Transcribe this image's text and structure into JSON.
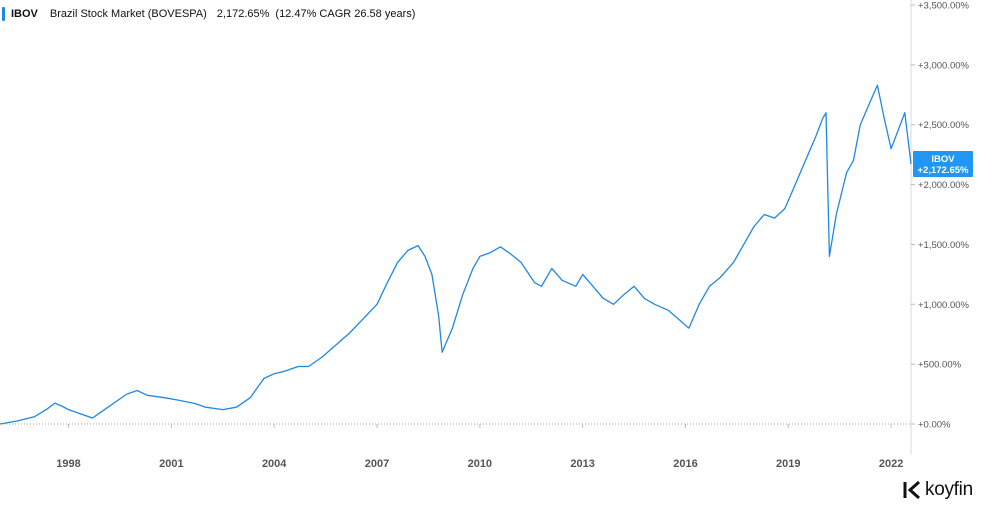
{
  "legend": {
    "ticker": "IBOV",
    "series_name": "Brazil Stock Market (BOVESPA)",
    "return_pct": "2,172.65%",
    "cagr_note": "(12.47% CAGR 26.58 years)"
  },
  "brand": {
    "name": "koyfin",
    "icon": "koyfin-logo-icon"
  },
  "colors": {
    "line": "#1e88e5",
    "badge": "#2196f3",
    "axis": "#d9d9d9",
    "zero_line": "#9e9e9e",
    "tick_text": "#555555"
  },
  "end_badge": {
    "ticker": "IBOV",
    "value": "+2,172.65%"
  },
  "chart_data": {
    "type": "line",
    "title": "",
    "xlabel": "",
    "ylabel": "",
    "x_tick_labels": [
      "1998",
      "2001",
      "2004",
      "2007",
      "2010",
      "2013",
      "2016",
      "2019",
      "2022"
    ],
    "x_tick_years": [
      1998,
      2001,
      2004,
      2007,
      2010,
      2013,
      2016,
      2019,
      2022
    ],
    "y_tick_labels": [
      "+0.00%",
      "+500.00%",
      "+1,000.00%",
      "+1,500.00%",
      "+2,000.00%",
      "+2,500.00%",
      "+3,000.00%",
      "+3,500.00%"
    ],
    "y_tick_values": [
      0,
      500,
      1000,
      1500,
      2000,
      2500,
      3000,
      3500
    ],
    "xlim": [
      1996.0,
      2022.58
    ],
    "ylim": [
      0,
      3500
    ],
    "grid": false,
    "series": [
      {
        "ticker": "IBOV",
        "x": [
          1996.0,
          1996.5,
          1997.0,
          1997.4,
          1997.6,
          1997.8,
          1998.0,
          1998.3,
          1998.7,
          1999.0,
          1999.3,
          1999.7,
          2000.0,
          2000.3,
          2000.8,
          2001.2,
          2001.7,
          2002.0,
          2002.5,
          2002.9,
          2003.3,
          2003.7,
          2004.0,
          2004.3,
          2004.7,
          2005.0,
          2005.4,
          2005.8,
          2006.2,
          2006.6,
          2007.0,
          2007.3,
          2007.6,
          2007.9,
          2008.2,
          2008.4,
          2008.6,
          2008.8,
          2008.9,
          2009.2,
          2009.5,
          2009.8,
          2010.0,
          2010.3,
          2010.6,
          2010.9,
          2011.2,
          2011.6,
          2011.8,
          2012.1,
          2012.4,
          2012.8,
          2013.0,
          2013.3,
          2013.6,
          2013.9,
          2014.2,
          2014.5,
          2014.8,
          2015.1,
          2015.5,
          2015.9,
          2016.1,
          2016.4,
          2016.7,
          2017.0,
          2017.4,
          2017.8,
          2018.0,
          2018.3,
          2018.6,
          2018.9,
          2019.2,
          2019.5,
          2019.8,
          2020.0,
          2020.1,
          2020.2,
          2020.4,
          2020.7,
          2020.9,
          2021.1,
          2021.4,
          2021.6,
          2021.8,
          2022.0,
          2022.2,
          2022.4,
          2022.58
        ],
        "y": [
          0,
          25,
          60,
          130,
          175,
          150,
          120,
          90,
          50,
          110,
          170,
          250,
          280,
          240,
          220,
          200,
          170,
          140,
          120,
          140,
          220,
          380,
          420,
          440,
          480,
          480,
          560,
          660,
          760,
          880,
          1000,
          1180,
          1350,
          1450,
          1490,
          1400,
          1250,
          900,
          600,
          800,
          1080,
          1300,
          1400,
          1430,
          1480,
          1420,
          1350,
          1180,
          1150,
          1300,
          1200,
          1150,
          1250,
          1150,
          1050,
          1000,
          1080,
          1150,
          1050,
          1000,
          950,
          850,
          800,
          1000,
          1150,
          1220,
          1350,
          1550,
          1650,
          1750,
          1720,
          1800,
          2000,
          2200,
          2400,
          2550,
          2600,
          1400,
          1750,
          2100,
          2200,
          2500,
          2700,
          2830,
          2550,
          2300,
          2450,
          2600,
          2172.65
        ]
      }
    ]
  }
}
